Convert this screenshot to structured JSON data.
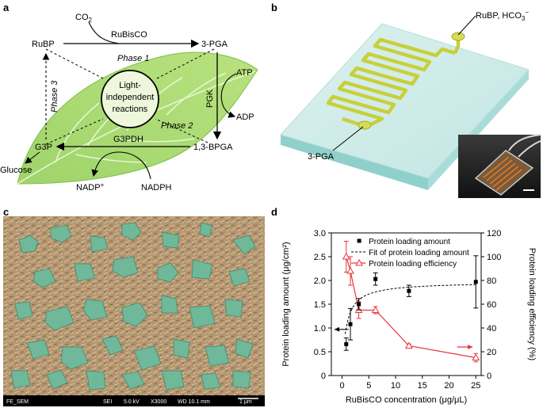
{
  "panels": {
    "a": "a",
    "b": "b",
    "c": "c",
    "d": "d"
  },
  "cycle": {
    "co2": "CO",
    "co2_sub": "2",
    "rubp": "RuBP",
    "rubisco": "RuBisCO",
    "pga3": "3-PGA",
    "phase1": "Phase 1",
    "phase2": "Phase 2",
    "phase3": "Phase 3",
    "center_line1": "Light-",
    "center_line2": "independent",
    "center_line3": "reactions",
    "atp": "ATP",
    "adp": "ADP",
    "pgk": "PGK",
    "g3p": "G3P",
    "g3pdh": "G3PDH",
    "bpga": "1,3-BPGA",
    "glucose": "Glucose",
    "nadp": "NADP",
    "nadp_sup": "+",
    "nadph": "NADPH"
  },
  "chip": {
    "inlet": "RuBP, HCO",
    "inlet_sub": "3",
    "inlet_sup": "−",
    "outlet": "3-PGA"
  },
  "sem": {
    "bar_left": "FE_SEM",
    "bar_items": [
      "SEI",
      "5.0 kV",
      "X3000",
      "WD 10.1 mm",
      "1 μm"
    ]
  },
  "chart_data": {
    "type": "scatter",
    "xlabel": "RuBisCO concentration (μg/μL)",
    "ylabel": "Protein loading amount (μg/cm²)",
    "y2label": "Protein loading efficiency (%)",
    "xlim": [
      -2,
      26
    ],
    "ylim": [
      0,
      3.0
    ],
    "y2lim": [
      0,
      120
    ],
    "xticks": [
      0,
      5,
      10,
      15,
      20,
      25
    ],
    "yticks": [
      "0",
      "0.5",
      "1.0",
      "1.5",
      "2.0",
      "2.5",
      "3.0"
    ],
    "y2ticks": [
      0,
      20,
      40,
      60,
      80,
      100,
      120
    ],
    "legend_position": "top-right",
    "series": [
      {
        "name": "Protein loading amount",
        "axis": "left",
        "color": "#000000",
        "x": [
          0.78,
          1.56,
          3.13,
          6.25,
          12.5,
          25
        ],
        "y": [
          0.66,
          1.08,
          1.5,
          2.03,
          1.78,
          1.97
        ],
        "err": [
          0.13,
          0.33,
          0.12,
          0.13,
          0.12,
          0.55
        ]
      },
      {
        "name": "Fit of protein loading amount",
        "axis": "left",
        "color": "#000000",
        "style": "dashed"
      },
      {
        "name": "Protein loading efficiency",
        "axis": "right",
        "color": "#e8343c",
        "x": [
          0.78,
          1.56,
          3.13,
          6.25,
          12.5,
          25
        ],
        "y": [
          100,
          88,
          55,
          55,
          25,
          15
        ],
        "err": [
          13,
          12,
          7,
          3,
          1.5,
          3.5
        ]
      }
    ]
  }
}
